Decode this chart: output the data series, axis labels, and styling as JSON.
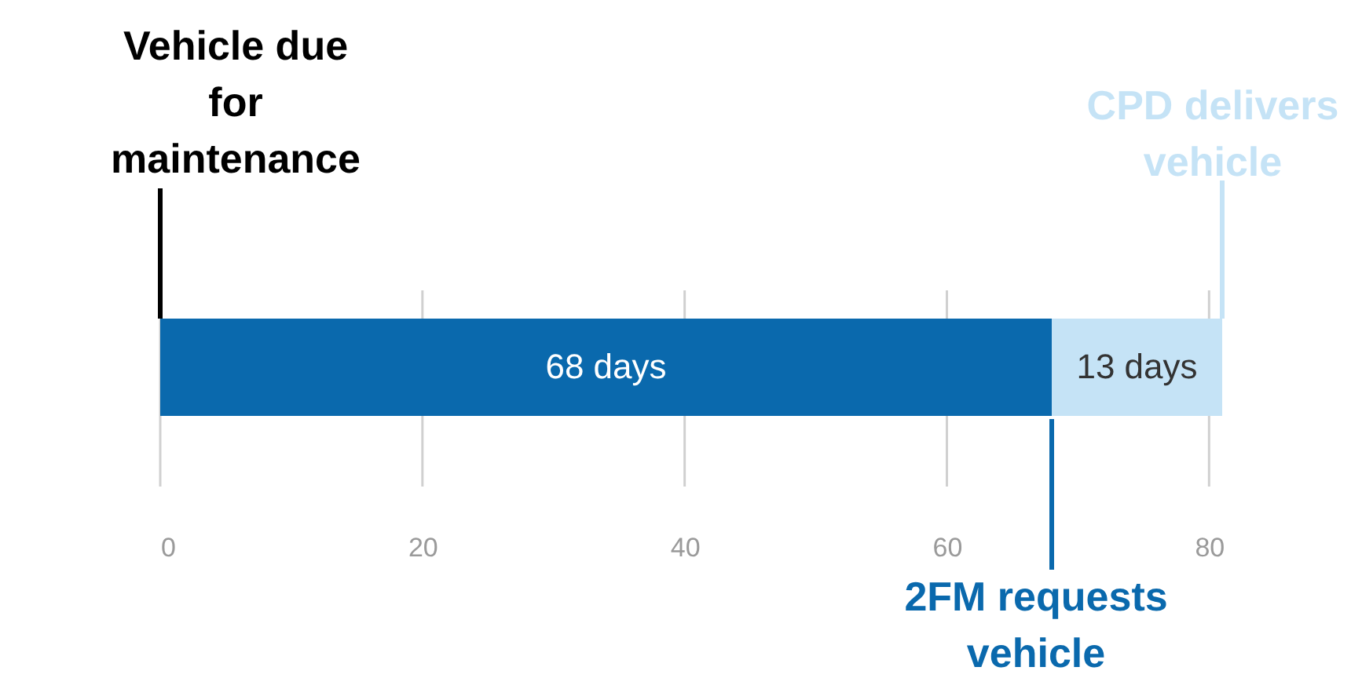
{
  "chart_data": {
    "type": "bar",
    "orientation": "horizontal",
    "stacked": true,
    "categories": [
      null
    ],
    "series": [
      {
        "color": "#0a69ad",
        "values": [
          68
        ],
        "value_labels": [
          "68 days"
        ]
      },
      {
        "color": "#c5e3f6",
        "values": [
          13
        ],
        "value_labels": [
          "13 days"
        ]
      }
    ],
    "xlim": [
      0,
      81
    ],
    "xticks": [
      0,
      20,
      40,
      60,
      80
    ],
    "grid": "x",
    "annotations": [
      "Vehicle due for maintenance",
      "2FM requests vehicle",
      "CPD delivers vehicle"
    ]
  }
}
